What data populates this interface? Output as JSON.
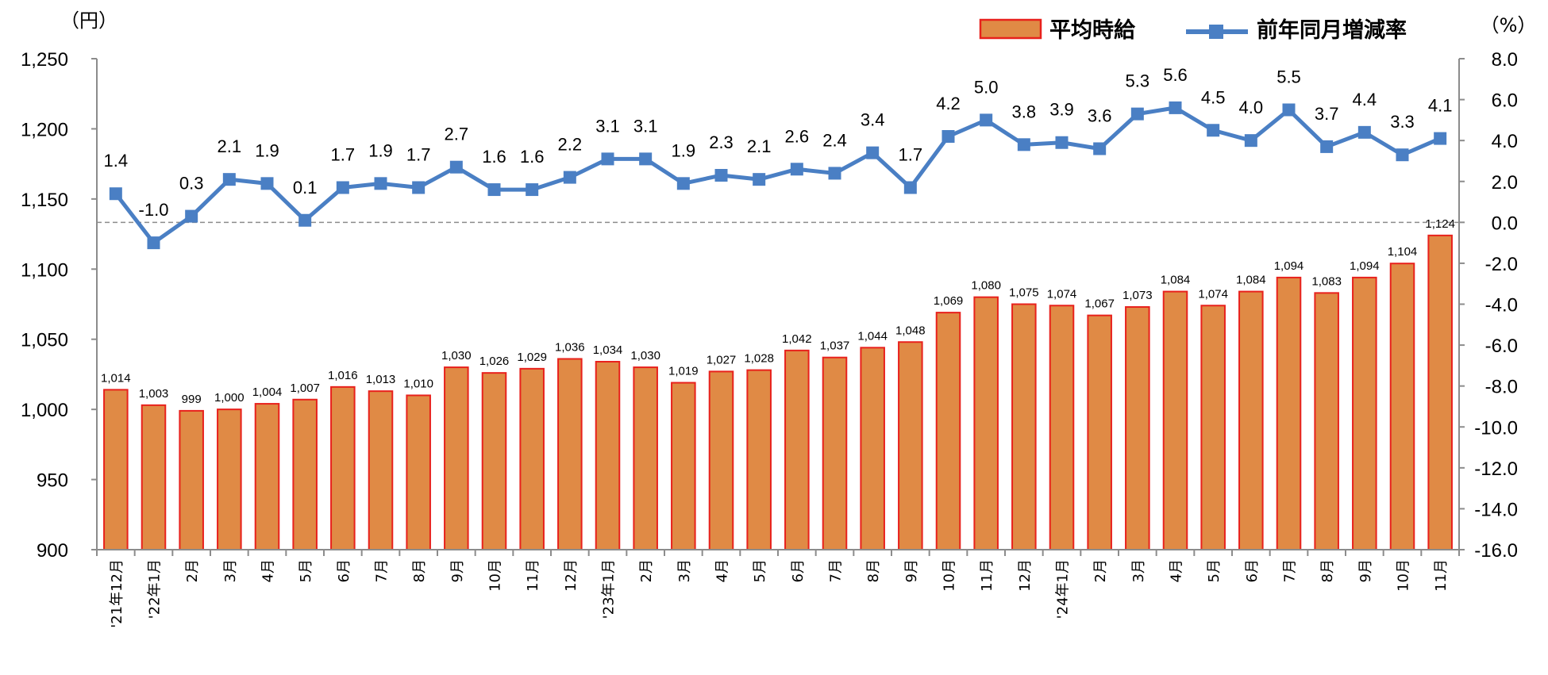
{
  "chart_data": {
    "type": "bar",
    "left_unit": "（円）",
    "right_unit": "（%）",
    "categories": [
      "'21年12月",
      "'22年1月",
      "2月",
      "3月",
      "4月",
      "5月",
      "6月",
      "7月",
      "8月",
      "9月",
      "10月",
      "11月",
      "12月",
      "'23年1月",
      "2月",
      "3月",
      "4月",
      "5月",
      "6月",
      "7月",
      "8月",
      "9月",
      "10月",
      "11月",
      "12月",
      "'24年1月",
      "2月",
      "3月",
      "4月",
      "5月",
      "6月",
      "7月",
      "8月",
      "9月",
      "10月",
      "11月"
    ],
    "series": [
      {
        "name": "平均時給",
        "type": "bar",
        "axis": "left",
        "color": "#E08A45",
        "edge_color": "#E8211C",
        "values": [
          1014,
          1003,
          999,
          1000,
          1004,
          1007,
          1016,
          1013,
          1010,
          1030,
          1026,
          1029,
          1036,
          1034,
          1030,
          1019,
          1027,
          1028,
          1042,
          1037,
          1044,
          1048,
          1069,
          1080,
          1075,
          1074,
          1067,
          1073,
          1084,
          1074,
          1084,
          1094,
          1083,
          1094,
          1104,
          1124
        ],
        "labels": [
          "1,014",
          "1,003",
          "999",
          "1,000",
          "1,004",
          "1,007",
          "1,016",
          "1,013",
          "1,010",
          "1,030",
          "1,026",
          "1,029",
          "1,036",
          "1,034",
          "1,030",
          "1,019",
          "1,027",
          "1,028",
          "1,042",
          "1,037",
          "1,044",
          "1,048",
          "1,069",
          "1,080",
          "1,075",
          "1,074",
          "1,067",
          "1,073",
          "1,084",
          "1,074",
          "1,084",
          "1,094",
          "1,083",
          "1,094",
          "1,104",
          "1,124"
        ]
      },
      {
        "name": "前年同月増減率",
        "type": "line",
        "axis": "right",
        "color": "#4A7FC4",
        "values": [
          1.4,
          -1.0,
          0.3,
          2.1,
          1.9,
          0.1,
          1.7,
          1.9,
          1.7,
          2.7,
          1.6,
          1.6,
          2.2,
          3.1,
          3.1,
          1.9,
          2.3,
          2.1,
          2.6,
          2.4,
          3.4,
          1.7,
          4.2,
          5.0,
          3.8,
          3.9,
          3.6,
          5.3,
          5.6,
          4.5,
          4.0,
          5.5,
          3.7,
          4.4,
          3.3,
          4.1
        ],
        "labels": [
          "1.4",
          "-1.0",
          "0.3",
          "2.1",
          "1.9",
          "0.1",
          "1.7",
          "1.9",
          "1.7",
          "2.7",
          "1.6",
          "1.6",
          "2.2",
          "3.1",
          "3.1",
          "1.9",
          "2.3",
          "2.1",
          "2.6",
          "2.4",
          "3.4",
          "1.7",
          "4.2",
          "5.0",
          "3.8",
          "3.9",
          "3.6",
          "5.3",
          "5.6",
          "4.5",
          "4.0",
          "5.5",
          "3.7",
          "4.4",
          "3.3",
          "4.1"
        ]
      }
    ],
    "left_axis": {
      "min": 900,
      "max": 1250,
      "step": 50,
      "ticks": [
        "900",
        "950",
        "1,000",
        "1,050",
        "1,100",
        "1,150",
        "1,200",
        "1,250"
      ]
    },
    "right_axis": {
      "min": -16.0,
      "max": 8.0,
      "step": 2,
      "ticks": [
        "-16.0",
        "-14.0",
        "-12.0",
        "-10.0",
        "-8.0",
        "-6.0",
        "-4.0",
        "-2.0",
        "0.0",
        "2.0",
        "4.0",
        "6.0",
        "8.0"
      ]
    },
    "zero_reference_line": true,
    "legend_position": "top-right"
  }
}
